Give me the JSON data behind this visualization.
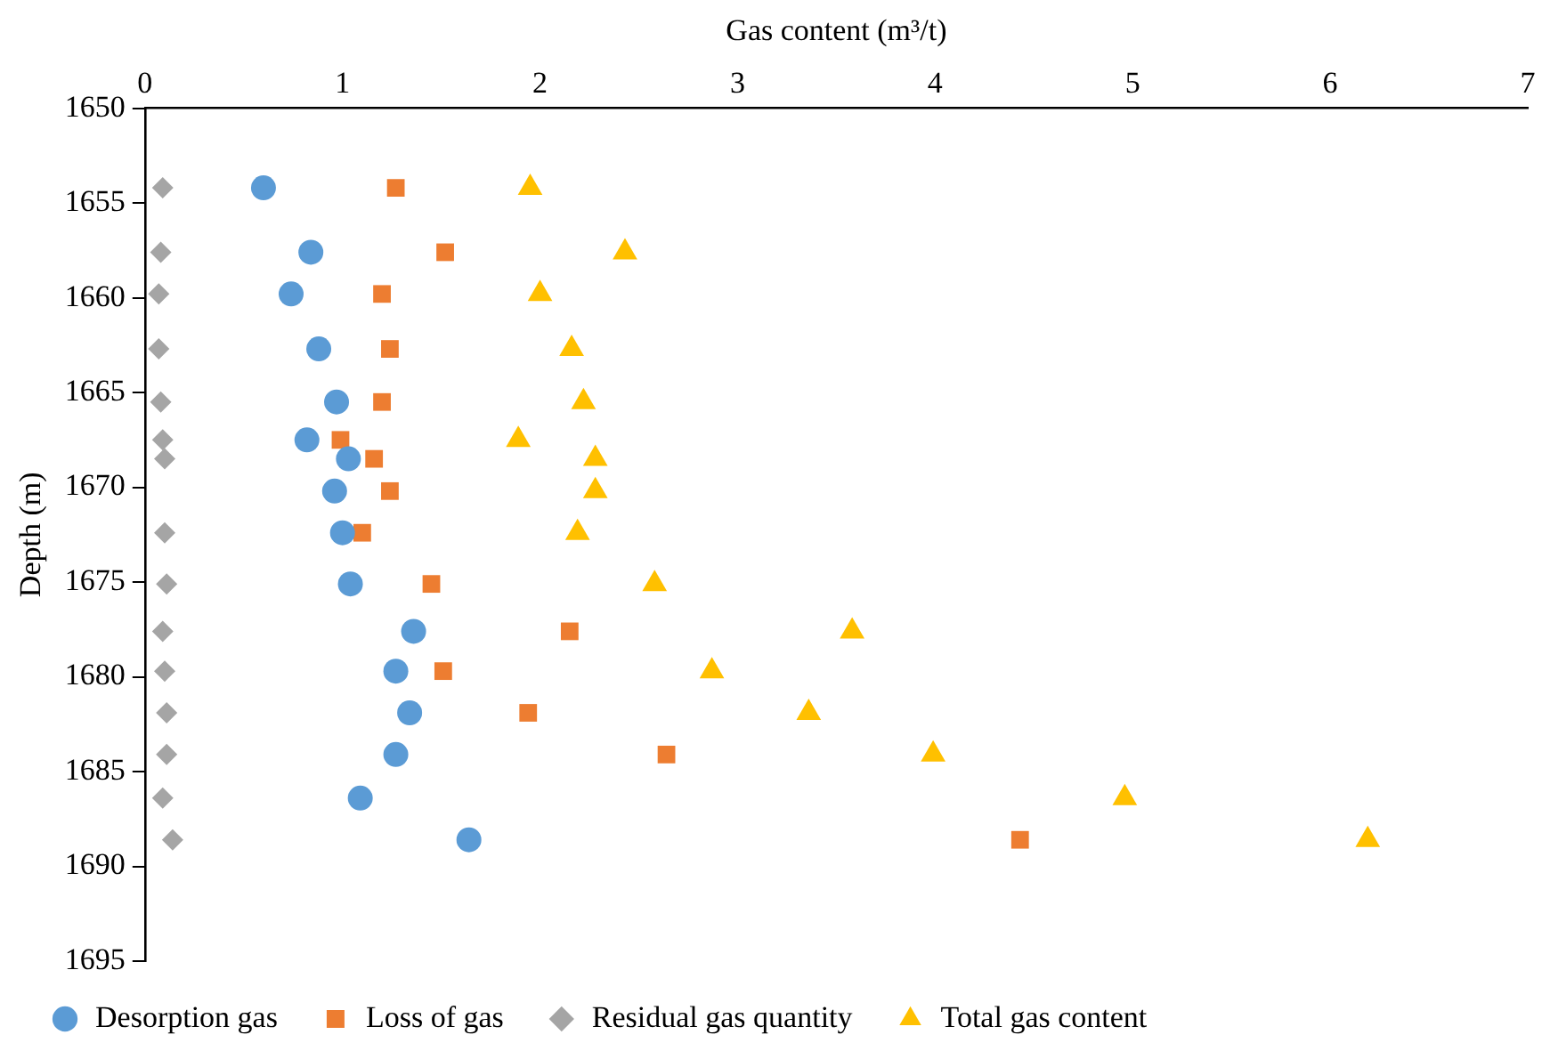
{
  "chart_data": {
    "type": "scatter",
    "xlabel": "Gas content (m³/t)",
    "ylabel": "Depth (m)",
    "xlim": [
      0,
      7
    ],
    "xticks": [
      0,
      1,
      2,
      3,
      4,
      5,
      6,
      7
    ],
    "ylim": [
      1695,
      1650
    ],
    "yticks": [
      1650,
      1655,
      1660,
      1665,
      1670,
      1675,
      1680,
      1685,
      1690,
      1695
    ],
    "grid": false,
    "legend": "bottom",
    "series": [
      {
        "name": "Desorption gas",
        "color": "#5b9bd5",
        "marker": "circle",
        "x": [
          0.6,
          0.84,
          0.74,
          0.88,
          0.97,
          0.82,
          1.03,
          0.96,
          1.0,
          1.04,
          1.36,
          1.27,
          1.34,
          1.27,
          1.09,
          1.64
        ],
        "values": [
          1654.2,
          1657.6,
          1659.8,
          1662.7,
          1665.5,
          1667.5,
          1668.5,
          1670.2,
          1672.4,
          1675.1,
          1677.6,
          1679.7,
          1681.9,
          1684.1,
          1686.4,
          1688.6
        ]
      },
      {
        "name": "Loss of gas",
        "color": "#ed7d31",
        "marker": "square",
        "x": [
          1.27,
          1.52,
          1.2,
          1.24,
          1.2,
          0.99,
          1.16,
          1.24,
          1.1,
          1.45,
          2.15,
          1.51,
          1.94,
          2.64,
          4.43
        ],
        "values": [
          1654.2,
          1657.6,
          1659.8,
          1662.7,
          1665.5,
          1667.5,
          1668.5,
          1670.2,
          1672.4,
          1675.1,
          1677.6,
          1679.7,
          1681.9,
          1684.1,
          1688.6
        ]
      },
      {
        "name": "Residual gas quantity",
        "color": "#a5a5a5",
        "marker": "diamond",
        "x": [
          0.09,
          0.08,
          0.07,
          0.07,
          0.08,
          0.09,
          0.1,
          0.1,
          0.11,
          0.09,
          0.1,
          0.11,
          0.11,
          0.09,
          0.14
        ],
        "values": [
          1654.2,
          1657.6,
          1659.8,
          1662.7,
          1665.5,
          1667.5,
          1668.5,
          1672.4,
          1675.1,
          1677.6,
          1679.7,
          1681.9,
          1684.1,
          1686.4,
          1688.6
        ]
      },
      {
        "name": "Total gas content",
        "color": "#ffc000",
        "marker": "triangle",
        "x": [
          1.95,
          2.43,
          2.0,
          2.16,
          2.22,
          1.89,
          2.28,
          2.28,
          2.19,
          2.58,
          3.58,
          2.87,
          3.36,
          3.99,
          4.96,
          6.19
        ],
        "values": [
          1654.2,
          1657.6,
          1659.8,
          1662.7,
          1665.5,
          1667.5,
          1668.5,
          1670.2,
          1672.4,
          1675.1,
          1677.6,
          1679.7,
          1681.9,
          1684.1,
          1686.4,
          1688.6
        ]
      }
    ]
  }
}
